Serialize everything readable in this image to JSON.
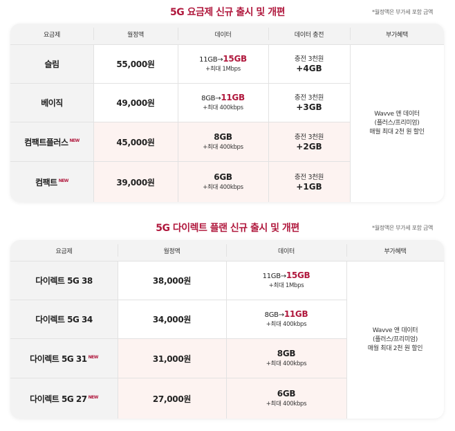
{
  "section1": {
    "title": "5G 요금제 신규 출시 및 개편",
    "note": "*월정액은 부가세 포함 금액",
    "headers": [
      "요금제",
      "월정액",
      "데이터",
      "데이터 충전",
      "부가혜택"
    ],
    "rows": [
      {
        "plan": "슬림",
        "new": "",
        "price": "55,000원",
        "data_pre": "11GB→",
        "data_hl": "15GB",
        "data_sub": "+최대 1Mbps",
        "charge_top": "충전 3천원",
        "charge_big": "+4GB"
      },
      {
        "plan": "베이직",
        "new": "",
        "price": "49,000원",
        "data_pre": "8GB→",
        "data_hl": "11GB",
        "data_sub": "+최대 400kbps",
        "charge_top": "충전 3천원",
        "charge_big": "+3GB"
      },
      {
        "plan": "컴팩트플러스",
        "new": "NEW",
        "price": "45,000원",
        "data_main": "8GB",
        "data_sub": "+최대 400kbps",
        "charge_top": "충전 3천원",
        "charge_big": "+2GB"
      },
      {
        "plan": "컴팩트",
        "new": "NEW",
        "price": "39,000원",
        "data_main": "6GB",
        "data_sub": "+최대 400kbps",
        "charge_top": "충전 3천원",
        "charge_big": "+1GB"
      }
    ],
    "benefit": {
      "line1": "Wavve 앤 데이터",
      "line2": "(플러스/프리미엄)",
      "line3": "매월 최대 2천 원 할인"
    }
  },
  "section2": {
    "title": "5G 다이렉트 플랜 신규 출시 및 개편",
    "note": "*월정액은 부가세 포함 금액",
    "headers": [
      "요금제",
      "월정액",
      "데이터",
      "부가혜택"
    ],
    "rows": [
      {
        "plan": "다이렉트 5G 38",
        "new": "",
        "price": "38,000원",
        "data_pre": "11GB→",
        "data_hl": "15GB",
        "data_sub": "+최대 1Mbps"
      },
      {
        "plan": "다이렉트 5G 34",
        "new": "",
        "price": "34,000원",
        "data_pre": "8GB→",
        "data_hl": "11GB",
        "data_sub": "+최대 400kbps"
      },
      {
        "plan": "다이렉트 5G 31",
        "new": "NEW",
        "price": "31,000원",
        "data_main": "8GB",
        "data_sub": "+최대 400kbps"
      },
      {
        "plan": "다이렉트 5G 27",
        "new": "NEW",
        "price": "27,000원",
        "data_main": "6GB",
        "data_sub": "+최대 400kbps"
      }
    ],
    "benefit": {
      "line1": "Wavve 앤 데이터",
      "line2": "(플러스/프리미엄)",
      "line3": "매월 최대 2천 원 할인"
    }
  }
}
